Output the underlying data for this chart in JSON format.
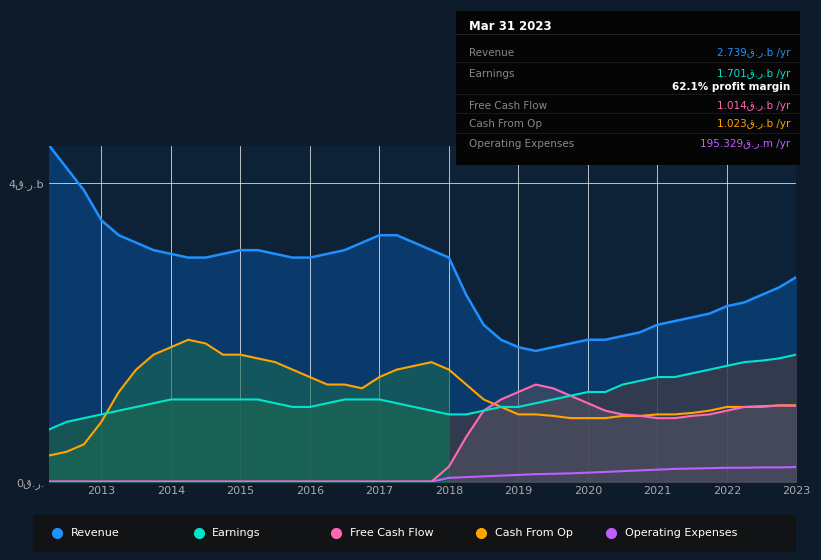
{
  "bg_color": "#0d1b2a",
  "plot_bg": "#0d2137",
  "title": "Mar 31 2023",
  "ylim": [
    0,
    4.5
  ],
  "years": [
    2012.25,
    2012.5,
    2012.75,
    2013,
    2013.25,
    2013.5,
    2013.75,
    2014,
    2014.25,
    2014.5,
    2014.75,
    2015,
    2015.25,
    2015.5,
    2015.75,
    2016,
    2016.25,
    2016.5,
    2016.75,
    2017,
    2017.25,
    2017.5,
    2017.75,
    2018,
    2018.25,
    2018.5,
    2018.75,
    2019,
    2019.25,
    2019.5,
    2019.75,
    2020,
    2020.25,
    2020.5,
    2020.75,
    2021,
    2021.25,
    2021.5,
    2021.75,
    2022,
    2022.25,
    2022.5,
    2022.75,
    2023
  ],
  "revenue": [
    4.5,
    4.2,
    3.9,
    3.5,
    3.3,
    3.2,
    3.1,
    3.05,
    3.0,
    3.0,
    3.05,
    3.1,
    3.1,
    3.05,
    3.0,
    3.0,
    3.05,
    3.1,
    3.2,
    3.3,
    3.3,
    3.2,
    3.1,
    3.0,
    2.5,
    2.1,
    1.9,
    1.8,
    1.75,
    1.8,
    1.85,
    1.9,
    1.9,
    1.95,
    2.0,
    2.1,
    2.15,
    2.2,
    2.25,
    2.35,
    2.4,
    2.5,
    2.6,
    2.739
  ],
  "earnings": [
    0.7,
    0.8,
    0.85,
    0.9,
    0.95,
    1.0,
    1.05,
    1.1,
    1.1,
    1.1,
    1.1,
    1.1,
    1.1,
    1.05,
    1.0,
    1.0,
    1.05,
    1.1,
    1.1,
    1.1,
    1.05,
    1.0,
    0.95,
    0.9,
    0.9,
    0.95,
    1.0,
    1.0,
    1.05,
    1.1,
    1.15,
    1.2,
    1.2,
    1.3,
    1.35,
    1.4,
    1.4,
    1.45,
    1.5,
    1.55,
    1.6,
    1.62,
    1.65,
    1.701
  ],
  "free_cash_flow": [
    0.0,
    0.0,
    0.0,
    0.0,
    0.0,
    0.0,
    0.0,
    0.0,
    0.0,
    0.0,
    0.0,
    0.0,
    0.0,
    0.0,
    0.0,
    0.0,
    0.0,
    0.0,
    0.0,
    0.0,
    0.0,
    0.0,
    0.0,
    0.2,
    0.6,
    0.95,
    1.1,
    1.2,
    1.3,
    1.25,
    1.15,
    1.05,
    0.95,
    0.9,
    0.88,
    0.85,
    0.85,
    0.88,
    0.9,
    0.95,
    1.0,
    1.0,
    1.02,
    1.014
  ],
  "cash_from_op": [
    0.35,
    0.4,
    0.5,
    0.8,
    1.2,
    1.5,
    1.7,
    1.8,
    1.9,
    1.85,
    1.7,
    1.7,
    1.65,
    1.6,
    1.5,
    1.4,
    1.3,
    1.3,
    1.25,
    1.4,
    1.5,
    1.55,
    1.6,
    1.5,
    1.3,
    1.1,
    1.0,
    0.9,
    0.9,
    0.88,
    0.85,
    0.85,
    0.85,
    0.88,
    0.88,
    0.9,
    0.9,
    0.92,
    0.95,
    1.0,
    1.0,
    1.01,
    1.02,
    1.023
  ],
  "op_expenses": [
    0.0,
    0.0,
    0.0,
    0.0,
    0.0,
    0.0,
    0.0,
    0.0,
    0.0,
    0.0,
    0.0,
    0.0,
    0.0,
    0.0,
    0.0,
    0.0,
    0.0,
    0.0,
    0.0,
    0.0,
    0.0,
    0.0,
    0.0,
    0.05,
    0.06,
    0.07,
    0.08,
    0.09,
    0.1,
    0.105,
    0.11,
    0.12,
    0.13,
    0.14,
    0.15,
    0.16,
    0.17,
    0.175,
    0.18,
    0.185,
    0.185,
    0.19,
    0.19,
    0.1953
  ],
  "colors": {
    "revenue": "#1e90ff",
    "earnings": "#00e5cc",
    "free_cash_flow": "#ff69b4",
    "cash_from_op": "#ffa500",
    "op_expenses": "#bf5fff"
  },
  "legend": [
    {
      "label": "Revenue",
      "color": "#1e90ff"
    },
    {
      "label": "Earnings",
      "color": "#00e5cc"
    },
    {
      "label": "Free Cash Flow",
      "color": "#ff69b4"
    },
    {
      "label": "Cash From Op",
      "color": "#ffa500"
    },
    {
      "label": "Operating Expenses",
      "color": "#bf5fff"
    }
  ],
  "info_rows": [
    {
      "label": "Revenue",
      "value": "2.739ق.ر.b /yr",
      "color": "#1e90ff"
    },
    {
      "label": "Earnings",
      "value": "1.701ق.ر.b /yr",
      "color": "#00e5cc"
    },
    {
      "label": null,
      "value": "62.1% profit margin",
      "color": "#ffffff"
    },
    {
      "label": "Free Cash Flow",
      "value": "1.014ق.ر.b /yr",
      "color": "#ff69b4"
    },
    {
      "label": "Cash From Op",
      "value": "1.023ق.ر.b /yr",
      "color": "#ffa500"
    },
    {
      "label": "Operating Expenses",
      "value": "195.329ق.ر.m /yr",
      "color": "#bf5fff"
    }
  ]
}
